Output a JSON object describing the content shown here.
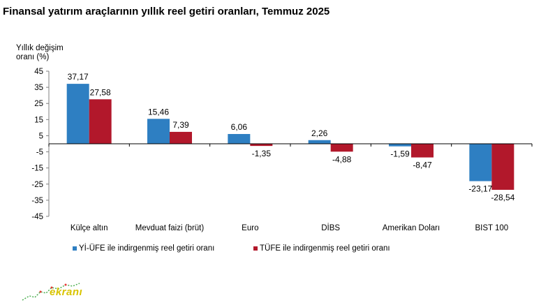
{
  "title": "Finansal yatırım araçlarının yıllık reel getiri oranları, Temmuz 2025",
  "logo_text": "ekranı",
  "chart_data": {
    "type": "bar",
    "title": "Finansal yatırım araçlarının yıllık reel getiri oranları, Temmuz 2025",
    "ylabel_lines": [
      "Yıllık değişim",
      "oranı (%)"
    ],
    "xlabel": "",
    "ylim": [
      -45,
      45
    ],
    "yticks": [
      45,
      35,
      25,
      15,
      5,
      -5,
      -15,
      -25,
      -35,
      -45
    ],
    "grid": false,
    "legend_position": "bottom-left",
    "categories": [
      "Külçe altın",
      "Mevduat faizi (brüt)",
      "Euro",
      "DİBS",
      "Amerikan Doları",
      "BIST 100"
    ],
    "series": [
      {
        "name": "Yİ-ÜFE ile indirgenmiş reel getiri oranı",
        "color": "#2e7fc2",
        "values": [
          37.17,
          15.46,
          6.06,
          2.26,
          -1.59,
          -23.17
        ],
        "labels": [
          "37,17",
          "15,46",
          "6,06",
          "2,26",
          "-1,59",
          "-23,17"
        ]
      },
      {
        "name": "TÜFE ile indirgenmiş reel getiri oranı",
        "color": "#b2182b",
        "values": [
          27.58,
          7.39,
          -1.35,
          -4.88,
          -8.47,
          -28.54
        ],
        "labels": [
          "27,58",
          "7,39",
          "-1,35",
          "-4,88",
          "-8,47",
          "-28,54"
        ]
      }
    ]
  }
}
